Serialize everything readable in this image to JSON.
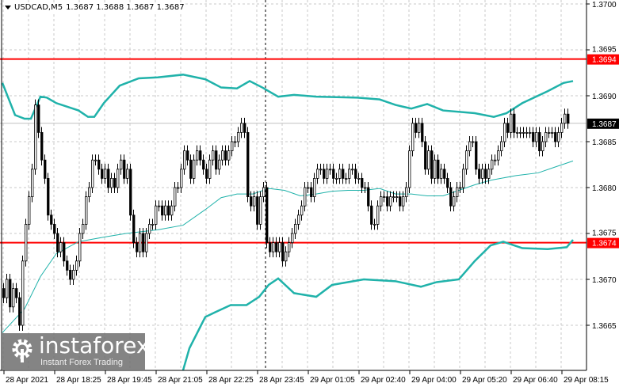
{
  "header": {
    "symbol": "USDCAD,M5",
    "ohlc": "1.3687 1.3688 1.3687 1.3687"
  },
  "colors": {
    "level_line": "#ff0000",
    "bands": "#20b2aa",
    "bull_body": "#ffffff",
    "bear_body": "#000000",
    "current_price_bg": "#000000"
  },
  "watermark": {
    "name": "instaforex",
    "tagline": "Instant Forex Trading"
  },
  "chart_data": {
    "type": "candlestick",
    "symbol": "USDCAD",
    "timeframe": "M5",
    "ylim": [
      1.36595,
      1.37004
    ],
    "yticks": [
      "1.3700",
      "1.3695",
      "1.3690",
      "1.3685",
      "1.3680",
      "1.3675",
      "1.3670",
      "1.3665"
    ],
    "xticks": [
      "28 Apr 2021",
      "28 Apr 18:25",
      "28 Apr 19:45",
      "28 Apr 21:05",
      "28 Apr 22:25",
      "28 Apr 23:45",
      "29 Apr 01:05",
      "29 Apr 02:40",
      "29 Apr 04:00",
      "29 Apr 05:20",
      "29 Apr 06:40",
      "29 Apr 08:15"
    ],
    "grid": true,
    "levels": [
      {
        "price": 1.3694,
        "label": "1.3694"
      },
      {
        "price": 1.3674,
        "label": "1.3674"
      }
    ],
    "current_price": {
      "price": 1.3687,
      "label": "1.3687"
    },
    "closes": [
      1.3668,
      1.367,
      1.3667,
      1.3669,
      1.3668,
      1.3665,
      1.3672,
      1.3676,
      1.3679,
      1.3682,
      1.3689,
      1.3686,
      1.3683,
      1.3681,
      1.3677,
      1.3676,
      1.3675,
      1.3673,
      1.3674,
      1.3672,
      1.3671,
      1.367,
      1.3671,
      1.3672,
      1.3675,
      1.3676,
      1.3679,
      1.368,
      1.3683,
      1.3683,
      1.3682,
      1.3681,
      1.3682,
      1.368,
      1.3681,
      1.368,
      1.3682,
      1.3683,
      1.3681,
      1.3682,
      1.3677,
      1.3674,
      1.3673,
      1.3675,
      1.3673,
      1.3675,
      1.3676,
      1.3676,
      1.3678,
      1.3678,
      1.3677,
      1.3678,
      1.3677,
      1.3678,
      1.368,
      1.368,
      1.3682,
      1.3684,
      1.3683,
      1.3681,
      1.3683,
      1.3684,
      1.3683,
      1.3682,
      1.3681,
      1.3683,
      1.3684,
      1.3682,
      1.3683,
      1.3684,
      1.3683,
      1.3684,
      1.3685,
      1.3685,
      1.3686,
      1.3687,
      1.3686,
      1.3679,
      1.3678,
      1.3679,
      1.3676,
      1.3679,
      1.368,
      1.3674,
      1.3673,
      1.3674,
      1.3673,
      1.3674,
      1.3672,
      1.3673,
      1.3674,
      1.3675,
      1.3676,
      1.3677,
      1.3678,
      1.368,
      1.368,
      1.3679,
      1.3681,
      1.3682,
      1.3682,
      1.3681,
      1.3682,
      1.3682,
      1.3681,
      1.3681,
      1.3682,
      1.3681,
      1.3681,
      1.3682,
      1.3682,
      1.3681,
      1.3681,
      1.368,
      1.368,
      1.3678,
      1.3676,
      1.3676,
      1.3678,
      1.3679,
      1.3679,
      1.3678,
      1.3679,
      1.3679,
      1.3679,
      1.3678,
      1.3679,
      1.368,
      1.3684,
      1.3687,
      1.3686,
      1.3687,
      1.3685,
      1.3682,
      1.3684,
      1.3681,
      1.3683,
      1.3681,
      1.3682,
      1.3681,
      1.368,
      1.3678,
      1.3679,
      1.368,
      1.368,
      1.3682,
      1.3684,
      1.3685,
      1.3685,
      1.3682,
      1.3681,
      1.3682,
      1.3681,
      1.3682,
      1.3683,
      1.3683,
      1.3684,
      1.3685,
      1.3687,
      1.3686,
      1.3688,
      1.3686,
      1.3686,
      1.3686,
      1.3686,
      1.3686,
      1.3686,
      1.3685,
      1.3686,
      1.3684,
      1.3685,
      1.3686,
      1.3686,
      1.3686,
      1.3685,
      1.3686,
      1.3687,
      1.3688,
      1.3687
    ],
    "bollinger_upper": [
      [
        0,
        1.36914
      ],
      [
        4,
        1.36879
      ],
      [
        7,
        1.36875
      ],
      [
        9,
        1.36875
      ],
      [
        12,
        1.36899
      ],
      [
        14,
        1.36898
      ],
      [
        17,
        1.36892
      ],
      [
        24,
        1.36884
      ],
      [
        27,
        1.36877
      ],
      [
        29,
        1.36877
      ],
      [
        32,
        1.36892
      ],
      [
        37,
        1.36911
      ],
      [
        43,
        1.36919
      ],
      [
        49,
        1.3692
      ],
      [
        57,
        1.36923
      ],
      [
        64,
        1.36918
      ],
      [
        69,
        1.36909
      ],
      [
        74,
        1.36908
      ],
      [
        78,
        1.36916
      ],
      [
        82,
        1.36909
      ],
      [
        87,
        1.36899
      ],
      [
        92,
        1.36901
      ],
      [
        99,
        1.36899
      ],
      [
        112,
        1.36898
      ],
      [
        119,
        1.36896
      ],
      [
        124,
        1.3689
      ],
      [
        129,
        1.36886
      ],
      [
        134,
        1.36891
      ],
      [
        139,
        1.36884
      ],
      [
        149,
        1.36881
      ],
      [
        155,
        1.36877
      ],
      [
        159,
        1.36881
      ],
      [
        164,
        1.36892
      ],
      [
        172,
        1.36905
      ],
      [
        177,
        1.36914
      ],
      [
        180,
        1.36916
      ]
    ],
    "bollinger_lower": [
      [
        57,
        1.36601
      ],
      [
        59,
        1.36625
      ],
      [
        64,
        1.36659
      ],
      [
        67,
        1.36664
      ],
      [
        72,
        1.36672
      ],
      [
        77,
        1.36672
      ],
      [
        81,
        1.36681
      ],
      [
        84,
        1.36694
      ],
      [
        87,
        1.36701
      ],
      [
        92,
        1.36685
      ],
      [
        99,
        1.36681
      ],
      [
        104,
        1.36694
      ],
      [
        114,
        1.367
      ],
      [
        124,
        1.36698
      ],
      [
        132,
        1.36692
      ],
      [
        137,
        1.36697
      ],
      [
        144,
        1.367
      ],
      [
        149,
        1.3672
      ],
      [
        154,
        1.36737
      ],
      [
        158,
        1.36741
      ],
      [
        164,
        1.36734
      ],
      [
        172,
        1.36733
      ],
      [
        178,
        1.36735
      ],
      [
        180,
        1.36743
      ]
    ],
    "bollinger_middle": [
      [
        0,
        1.36642
      ],
      [
        7,
        1.36668
      ],
      [
        12,
        1.36703
      ],
      [
        17,
        1.36728
      ],
      [
        24,
        1.36741
      ],
      [
        32,
        1.36746
      ],
      [
        39,
        1.3675
      ],
      [
        49,
        1.36754
      ],
      [
        57,
        1.36759
      ],
      [
        64,
        1.36776
      ],
      [
        69,
        1.36789
      ],
      [
        74,
        1.36793
      ],
      [
        79,
        1.36793
      ],
      [
        84,
        1.36799
      ],
      [
        89,
        1.36797
      ],
      [
        94,
        1.36791
      ],
      [
        99,
        1.36793
      ],
      [
        104,
        1.36796
      ],
      [
        109,
        1.36797
      ],
      [
        114,
        1.36797
      ],
      [
        119,
        1.36799
      ],
      [
        124,
        1.36793
      ],
      [
        129,
        1.36793
      ],
      [
        134,
        1.36791
      ],
      [
        139,
        1.36791
      ],
      [
        144,
        1.36797
      ],
      [
        149,
        1.36803
      ],
      [
        154,
        1.36808
      ],
      [
        162,
        1.36813
      ],
      [
        169,
        1.36816
      ],
      [
        174,
        1.36822
      ],
      [
        180,
        1.36829
      ]
    ]
  }
}
